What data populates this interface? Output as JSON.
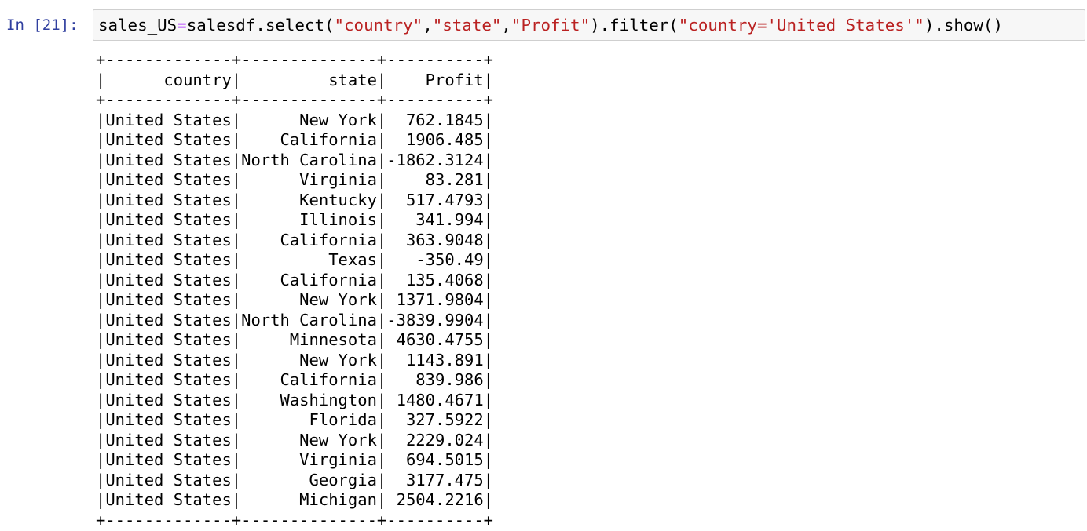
{
  "prompt": "In [21]:",
  "code": {
    "tokens": [
      {
        "text": "sales_US",
        "color": "#000000"
      },
      {
        "text": "=",
        "color": "#aa22ff"
      },
      {
        "text": "salesdf.select(",
        "color": "#000000"
      },
      {
        "text": "\"country\"",
        "color": "#ba2121"
      },
      {
        "text": ",",
        "color": "#000000"
      },
      {
        "text": "\"state\"",
        "color": "#ba2121"
      },
      {
        "text": ",",
        "color": "#000000"
      },
      {
        "text": "\"Profit\"",
        "color": "#ba2121"
      },
      {
        "text": ").filter(",
        "color": "#000000"
      },
      {
        "text": "\"country='United States'\"",
        "color": "#ba2121"
      },
      {
        "text": ").show()",
        "color": "#000000"
      }
    ]
  },
  "output": {
    "border": "+-------------+--------------+----------+",
    "header": "|      country|         state|    Profit|",
    "rows": [
      "|United States|      New York|  762.1845|",
      "|United States|    California|  1906.485|",
      "|United States|North Carolina|-1862.3124|",
      "|United States|      Virginia|    83.281|",
      "|United States|      Kentucky|  517.4793|",
      "|United States|      Illinois|   341.994|",
      "|United States|    California|  363.9048|",
      "|United States|         Texas|   -350.49|",
      "|United States|    California|  135.4068|",
      "|United States|      New York| 1371.9804|",
      "|United States|North Carolina|-3839.9904|",
      "|United States|     Minnesota| 4630.4755|",
      "|United States|      New York|  1143.891|",
      "|United States|    California|   839.986|",
      "|United States|    Washington| 1480.4671|",
      "|United States|       Florida|  327.5922|",
      "|United States|      New York|  2229.024|",
      "|United States|      Virginia|  694.5015|",
      "|United States|       Georgia|  3177.475|",
      "|United States|      Michigan| 2504.2216|"
    ]
  }
}
